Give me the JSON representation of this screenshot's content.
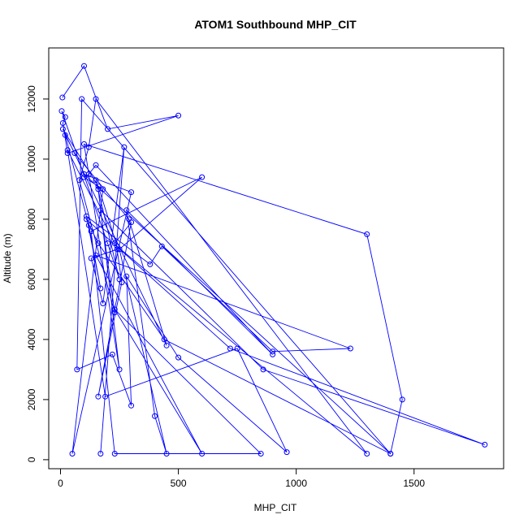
{
  "chart_data": {
    "type": "line",
    "title": "ATOM1 Southbound MHP_CIT",
    "xlabel": "MHP_CIT",
    "ylabel": "Altitude (m)",
    "xlim": [
      -50,
      1880
    ],
    "ylim": [
      -300,
      13700
    ],
    "xticks": [
      0,
      500,
      1000,
      1500
    ],
    "yticks": [
      0,
      2000,
      4000,
      6000,
      8000,
      10000,
      12000
    ],
    "grid": false,
    "series_color": "#0000ff",
    "markers": "open-circle",
    "series": [
      {
        "x": [
          8,
          100,
          200,
          500,
          30,
          10,
          20,
          5,
          200,
          250,
          150,
          160,
          250,
          100,
          1300,
          1450,
          1400,
          100,
          300,
          50,
          180,
          100,
          120,
          150,
          900,
          280,
          400,
          450,
          250,
          600,
          130,
          230,
          850,
          230,
          600,
          150,
          1230,
          900,
          430,
          380,
          110,
          170,
          120,
          20,
          60,
          290,
          450,
          10,
          160,
          240,
          1300,
          150,
          120,
          80,
          230,
          170,
          860,
          1800,
          720,
          110,
          160,
          440,
          1400,
          90,
          70,
          220,
          300,
          280,
          500,
          960,
          750,
          190,
          30,
          230,
          300,
          160,
          260,
          240,
          130,
          180,
          270,
          170
        ],
        "y": [
          12050,
          13100,
          11000,
          11450,
          10200,
          11200,
          11400,
          11600,
          7200,
          6000,
          9300,
          9000,
          3000,
          10500,
          7500,
          2000,
          200,
          9500,
          8900,
          200,
          9000,
          9400,
          9500,
          9800,
          3500,
          8300,
          1450,
          200,
          7000,
          9400,
          7600,
          200,
          200,
          5000,
          200,
          6800,
          3700,
          3600,
          7100,
          6500,
          8100,
          5700,
          7800,
          10800,
          10200,
          8000,
          3800,
          11000,
          9100,
          7100,
          200,
          12000,
          10400,
          9300,
          4900,
          8300,
          3000,
          500,
          3700,
          8000,
          7200,
          4000,
          200,
          12000,
          3000,
          3500,
          1800,
          6100,
          3400,
          250,
          3700,
          2100,
          10300,
          7200,
          7900,
          2100,
          5900,
          7000,
          6700,
          5200,
          10400,
          200
        ]
      }
    ]
  }
}
